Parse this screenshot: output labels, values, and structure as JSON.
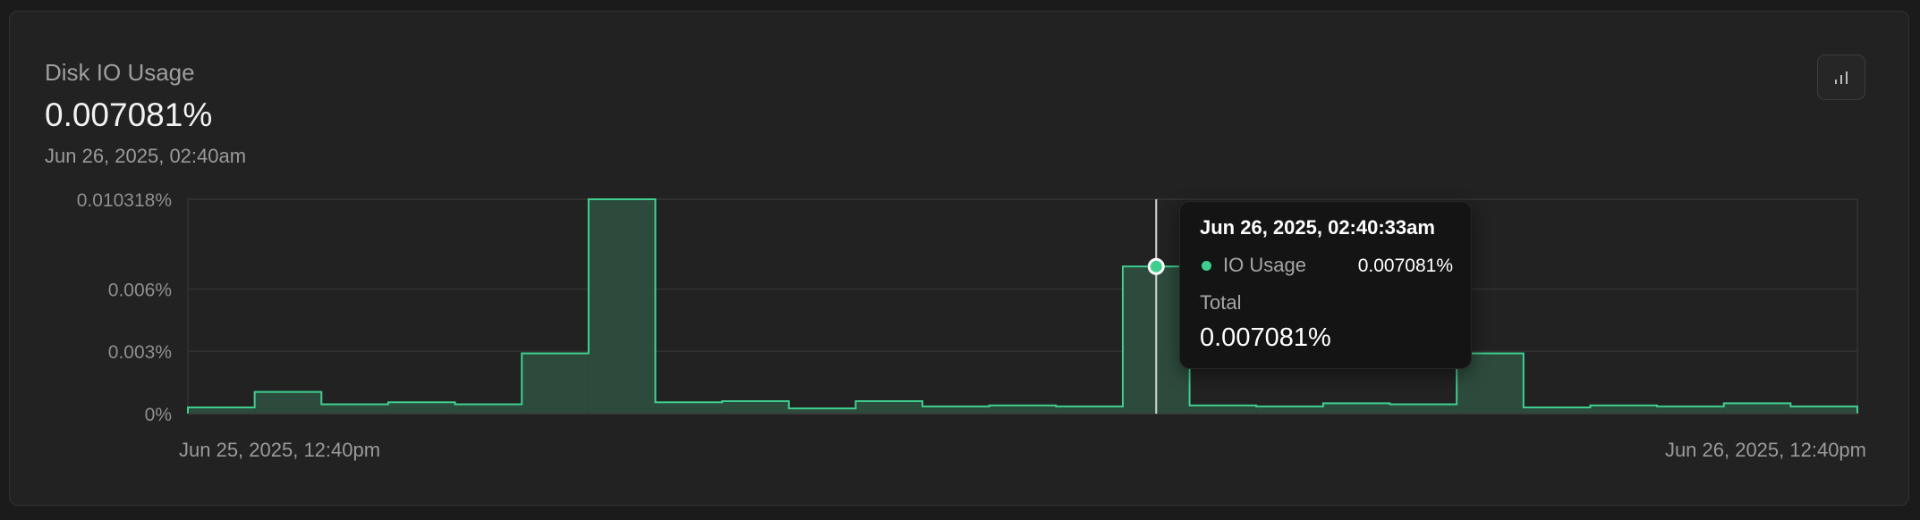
{
  "header": {
    "title": "Disk IO Usage",
    "value": "0.007081%",
    "date": "Jun 26, 2025, 02:40am"
  },
  "toolbar": {
    "chart_toggle_icon": "bar-chart-icon"
  },
  "colors": {
    "series": "#3ecf8e",
    "series_fill": "#2d4b3d",
    "grid": "#333333",
    "background": "#222222"
  },
  "tooltip": {
    "time": "Jun 26, 2025, 02:40:33am",
    "series_label": "IO Usage",
    "series_value": "0.007081%",
    "total_label": "Total",
    "total_value": "0.007081%"
  },
  "chart_data": {
    "type": "area",
    "step": true,
    "series": [
      {
        "name": "IO Usage",
        "values": [
          0.0003,
          0.00105,
          0.00045,
          0.00055,
          0.00045,
          0.0029,
          0.010318,
          0.00055,
          0.0006,
          0.00025,
          0.0006,
          0.00035,
          0.0004,
          0.00035,
          0.007081,
          0.0004,
          0.00035,
          0.0005,
          0.00045,
          0.0029,
          0.0003,
          0.0004,
          0.00035,
          0.0005,
          0.00035
        ]
      }
    ],
    "ylim": [
      0,
      0.010318
    ],
    "y_ticks": [
      {
        "value": 0.010318,
        "label": "0.010318%"
      },
      {
        "value": 0.006,
        "label": "0.006%"
      },
      {
        "value": 0.003,
        "label": "0.003%"
      },
      {
        "value": 0,
        "label": "0%"
      }
    ],
    "x_labels": {
      "start": "Jun 25, 2025, 12:40pm",
      "end": "Jun 26, 2025, 12:40pm"
    },
    "highlight_index": 14,
    "grid": true
  }
}
